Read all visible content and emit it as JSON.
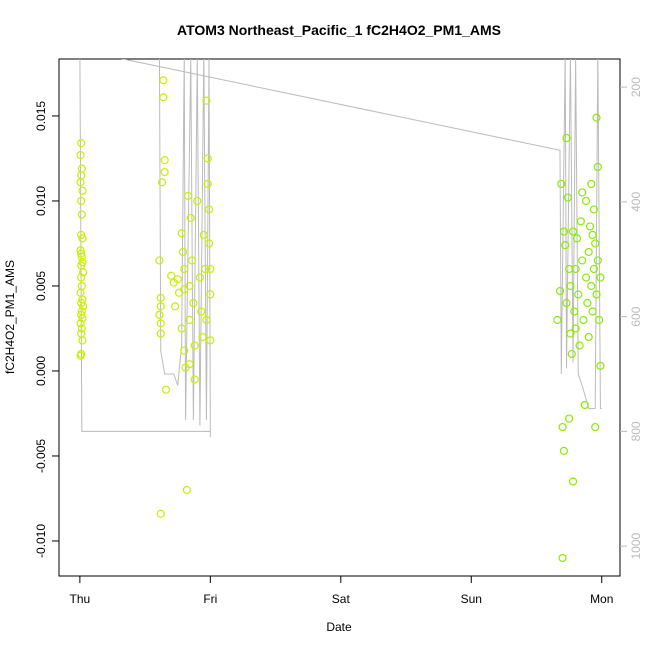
{
  "chart_data": {
    "type": "scatter",
    "title": "ATOM3 Northeast_Pacific_1 fC2H4O2_PM1_AMS",
    "xlabel": "Date",
    "ylabel": "fC2H4O2_PM1_AMS",
    "xlim": [
      -0.16,
      4.14
    ],
    "xticks": [
      {
        "value": 0,
        "label": "Thu"
      },
      {
        "value": 1,
        "label": "Fri"
      },
      {
        "value": 2,
        "label": "Sat"
      },
      {
        "value": 3,
        "label": "Sun"
      },
      {
        "value": 4,
        "label": "Mon"
      }
    ],
    "ylim": [
      -0.01206,
      0.01835
    ],
    "yticks": [
      {
        "value": -0.01,
        "label": "-0.010"
      },
      -0.005,
      {
        "value": 0,
        "label": "0.000"
      },
      0.005,
      {
        "value": 0.01,
        "label": "0.010"
      },
      0.015
    ],
    "y2lim": [
      1052,
      151
    ],
    "y2ticks": [
      200,
      400,
      600,
      800,
      1000
    ],
    "series": [
      {
        "color": "#ccee00",
        "x": [
          0.01,
          0.005,
          0.015,
          0.01,
          0.005,
          0.02,
          0.01,
          0.015,
          0.01,
          0.02,
          0.005,
          0.01,
          0.015,
          0.02,
          0.01,
          0.025,
          0.01,
          0.015,
          0.005,
          0.02,
          0.01,
          0.025,
          0.015,
          0.01,
          0.02,
          0.005,
          0.015,
          0.01,
          0.02,
          0.01,
          0.005,
          0.62,
          0.61,
          0.62,
          0.62,
          0.61,
          0.62,
          0.62,
          0.63,
          0.64,
          0.64,
          0.65,
          0.65,
          0.66,
          0.7,
          0.72,
          0.73,
          0.76,
          0.78,
          0.78,
          0.8,
          0.8,
          0.81,
          0.82,
          0.83,
          0.84,
          0.84,
          0.85,
          0.86,
          0.87,
          0.88,
          0.9,
          0.92,
          0.93,
          0.94,
          0.95,
          0.96,
          0.97,
          0.98,
          0.98,
          0.99,
          0.99,
          1.0,
          1.0,
          0.97,
          1.0,
          0.8,
          0.84,
          0.88,
          0.75,
          0.79
        ],
        "values": [
          0.0134,
          0.0127,
          0.0119,
          0.0115,
          0.0111,
          0.0106,
          0.01,
          0.0092,
          0.008,
          0.0078,
          0.0071,
          0.0069,
          0.0067,
          0.0064,
          0.0062,
          0.0058,
          0.0055,
          0.005,
          0.0046,
          0.0042,
          0.004,
          0.0038,
          0.0035,
          0.0033,
          0.0031,
          0.0028,
          0.0025,
          0.0022,
          0.0018,
          0.001,
          0.0009,
          -0.0084,
          0.0065,
          0.0043,
          0.0038,
          0.0033,
          0.0028,
          0.0022,
          0.0111,
          0.0171,
          0.0161,
          0.0124,
          0.0117,
          -0.0011,
          0.0056,
          0.0052,
          0.0038,
          0.0046,
          0.0081,
          0.0025,
          0.006,
          0.0048,
          0.0002,
          -0.007,
          0.0103,
          0.005,
          0.003,
          0.009,
          0.0065,
          0.004,
          0.0015,
          0.01,
          0.0055,
          0.0035,
          0.002,
          0.008,
          0.006,
          0.0159,
          0.0125,
          0.011,
          0.0095,
          0.0075,
          0.006,
          0.0045,
          0.003,
          0.0018,
          0.0012,
          0.0004,
          -0.0005,
          0.0054,
          0.007
        ]
      },
      {
        "color": "#88ee00",
        "x": [
          3.66,
          3.68,
          3.69,
          3.7,
          3.7,
          3.71,
          3.71,
          3.72,
          3.73,
          3.73,
          3.74,
          3.75,
          3.75,
          3.76,
          3.76,
          3.77,
          3.78,
          3.78,
          3.79,
          3.8,
          3.8,
          3.81,
          3.82,
          3.83,
          3.84,
          3.85,
          3.85,
          3.86,
          3.87,
          3.88,
          3.88,
          3.89,
          3.9,
          3.9,
          3.91,
          3.92,
          3.92,
          3.93,
          3.94,
          3.94,
          3.95,
          3.95,
          3.96,
          3.96,
          3.97,
          3.97,
          3.98,
          3.99,
          3.99,
          3.93
        ],
        "values": [
          0.003,
          0.0047,
          0.011,
          -0.0033,
          -0.011,
          -0.0047,
          0.0082,
          0.0074,
          0.0137,
          0.004,
          0.0102,
          0.006,
          -0.0028,
          0.005,
          0.0022,
          0.001,
          0.0082,
          -0.0065,
          0.0035,
          0.006,
          0.0025,
          0.0078,
          0.0045,
          0.0015,
          0.0088,
          0.0105,
          0.0065,
          0.003,
          -0.002,
          0.01,
          0.0055,
          0.004,
          0.007,
          0.002,
          0.0085,
          0.011,
          0.005,
          0.0035,
          0.0095,
          0.006,
          0.0075,
          -0.0033,
          0.0045,
          0.0149,
          0.012,
          0.0065,
          0.003,
          0.0003,
          0.0055,
          0.008
        ]
      },
      {
        "type": "line",
        "axis": "y2",
        "color": "#bbbbbb",
        "x": [
          0.0,
          0.015,
          1.0,
          1.0,
          null,
          0.61,
          0.62,
          0.65,
          0.72,
          0.75,
          0.78,
          0.8,
          0.81,
          0.85,
          0.87,
          0.9,
          0.92,
          0.95,
          0.97,
          0.99,
          1.0,
          null,
          0.1,
          3.68,
          3.69,
          3.72,
          3.73,
          3.76,
          3.78,
          3.8,
          3.82,
          3.85,
          3.9,
          3.95,
          3.97,
          3.99,
          4.0
        ],
        "values": [
          140,
          800,
          800,
          810,
          null,
          150,
          660,
          700,
          700,
          720,
          650,
          140,
          780,
          150,
          780,
          150,
          790,
          140,
          780,
          150,
          800,
          null,
          140,
          310,
          700,
          140,
          690,
          140,
          680,
          150,
          700,
          720,
          760,
          760,
          140,
          760,
          760
        ]
      }
    ]
  }
}
